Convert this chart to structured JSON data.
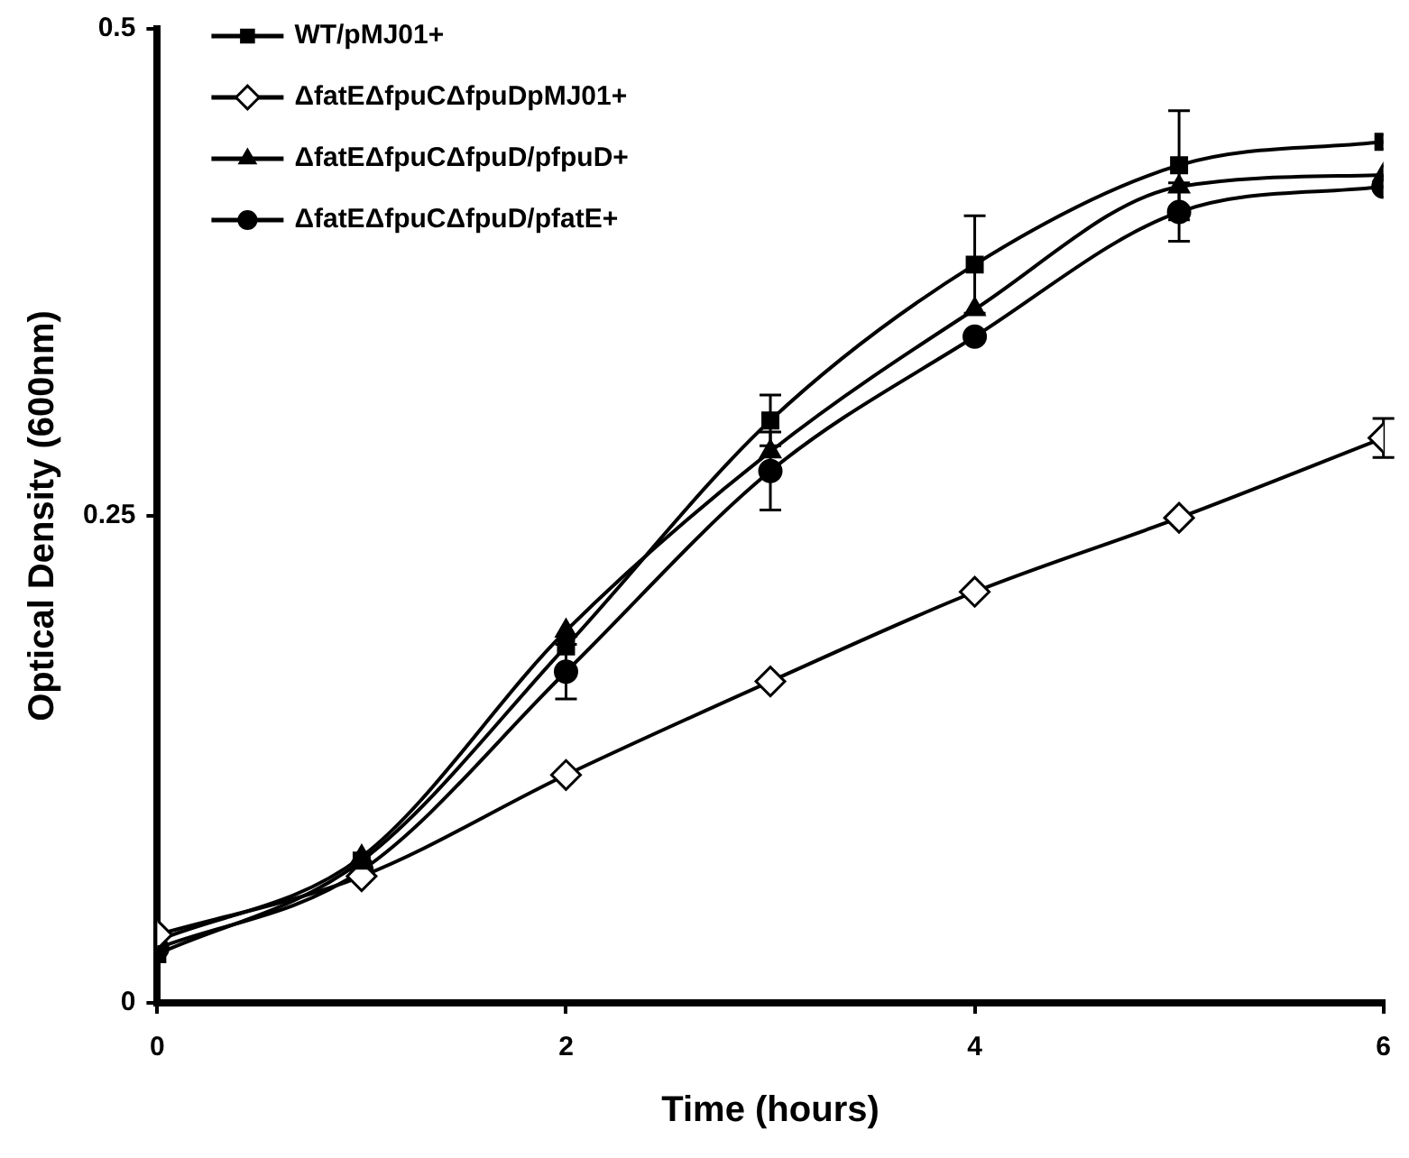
{
  "chart_data": {
    "type": "line",
    "xlabel": "Time (hours)",
    "ylabel": "Optical Density (600nm)",
    "x": [
      0,
      1,
      2,
      3,
      4,
      5,
      6
    ],
    "xlim": [
      0,
      6
    ],
    "xticks": [
      0,
      2,
      4,
      6
    ],
    "ylim": [
      0,
      0.5
    ],
    "yticks": [
      0,
      0.25,
      0.5
    ],
    "grid": false,
    "legend": "top left",
    "line_style": "solid",
    "series": [
      {
        "name": "WT/pMJ01+",
        "color": "#000000",
        "marker": "square",
        "values": [
          0.025,
          0.073,
          0.183,
          0.299,
          0.379,
          0.43,
          0.442
        ],
        "errors": [
          null,
          null,
          null,
          0.013,
          0.025,
          0.028,
          null
        ]
      },
      {
        "name": "ΔfatEΔfpuCΔfpuDpMJ01+",
        "color": "#000000",
        "marker": "diamond",
        "values": [
          0.035,
          0.065,
          0.117,
          0.165,
          0.211,
          0.249,
          0.29
        ],
        "errors": [
          null,
          null,
          null,
          null,
          null,
          null,
          0.01
        ]
      },
      {
        "name": "ΔfatEΔfpuCΔfpuD/pfpuD+",
        "color": "#000000",
        "marker": "triangle",
        "values": [
          0.032,
          0.075,
          0.191,
          0.283,
          0.356,
          0.419,
          0.425
        ]
      },
      {
        "name": "ΔfatEΔfpuCΔfpuD/pfatE+",
        "color": "#000000",
        "marker": "circle",
        "values": [
          0.028,
          0.068,
          0.17,
          0.273,
          0.342,
          0.406,
          0.419
        ],
        "errors": [
          null,
          null,
          0.014,
          0.02,
          null,
          0.015,
          null
        ]
      }
    ]
  }
}
